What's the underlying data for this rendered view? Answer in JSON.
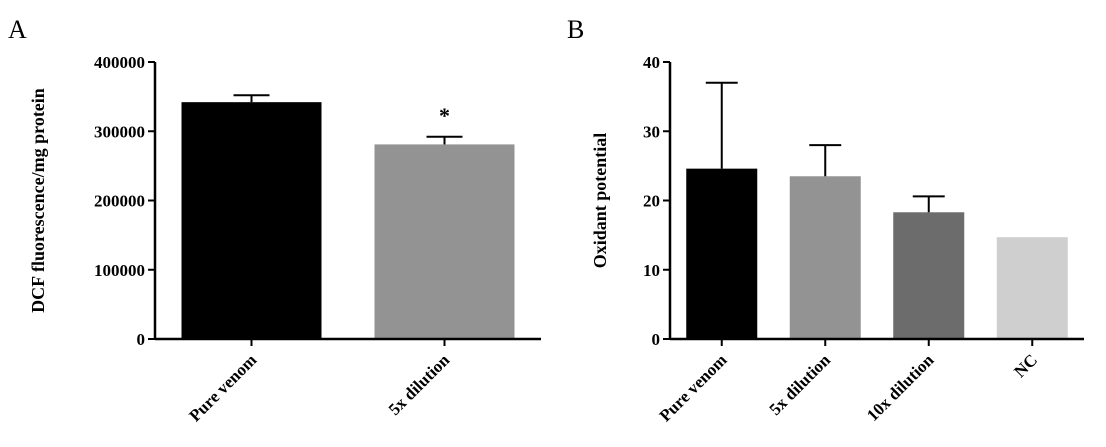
{
  "chart_data": [
    {
      "type": "bar",
      "panel_label": "A",
      "categories": [
        "Pure venom",
        "5x dilution"
      ],
      "values": [
        342000,
        281000
      ],
      "error_upper": [
        352000,
        292000
      ],
      "colors": [
        "#000000",
        "#939393"
      ],
      "annotations": [
        {
          "category": "5x dilution",
          "text": "*"
        }
      ],
      "ylabel": "DCF fluorescence/mg protein",
      "xlabel": "",
      "ylim": [
        0,
        400000
      ],
      "yticks": [
        0,
        100000,
        200000,
        300000,
        400000
      ],
      "ytick_labels": [
        "0",
        "100000",
        "200000",
        "300000",
        "400000"
      ],
      "grid": false,
      "legend": "none"
    },
    {
      "type": "bar",
      "panel_label": "B",
      "categories": [
        "Pure venom",
        "5x dilution",
        "10x dilution",
        "NC"
      ],
      "values": [
        24.6,
        23.5,
        18.3,
        14.7
      ],
      "error_upper": [
        37.0,
        28.0,
        20.6,
        null
      ],
      "colors": [
        "#000000",
        "#939393",
        "#6c6c6c",
        "#cfcfcf"
      ],
      "annotations": [],
      "ylabel": "Oxidant potential",
      "xlabel": "",
      "ylim": [
        0,
        40
      ],
      "yticks": [
        0,
        10,
        20,
        30,
        40
      ],
      "ytick_labels": [
        "0",
        "10",
        "20",
        "30",
        "40"
      ],
      "grid": false,
      "legend": "none"
    }
  ]
}
